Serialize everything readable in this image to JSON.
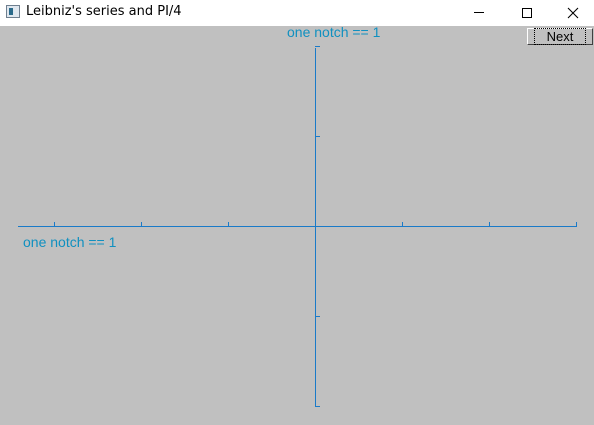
{
  "window": {
    "title": "Leibniz's series and PI/4",
    "icon": "app-window-icon",
    "controls": {
      "minimize": "minimize-icon",
      "maximize": "maximize-icon",
      "close": "close-icon"
    }
  },
  "toolbar": {
    "next_label": "Next"
  },
  "plot": {
    "x_axis_label": "one notch == 1",
    "y_axis_label": "one notch == 1",
    "axis_color": "#1a7ac8",
    "label_color": "#1090c0",
    "background": "#c0c0c0",
    "x_range": [
      -3,
      3
    ],
    "y_range": [
      -2,
      2
    ],
    "notch": 1
  }
}
